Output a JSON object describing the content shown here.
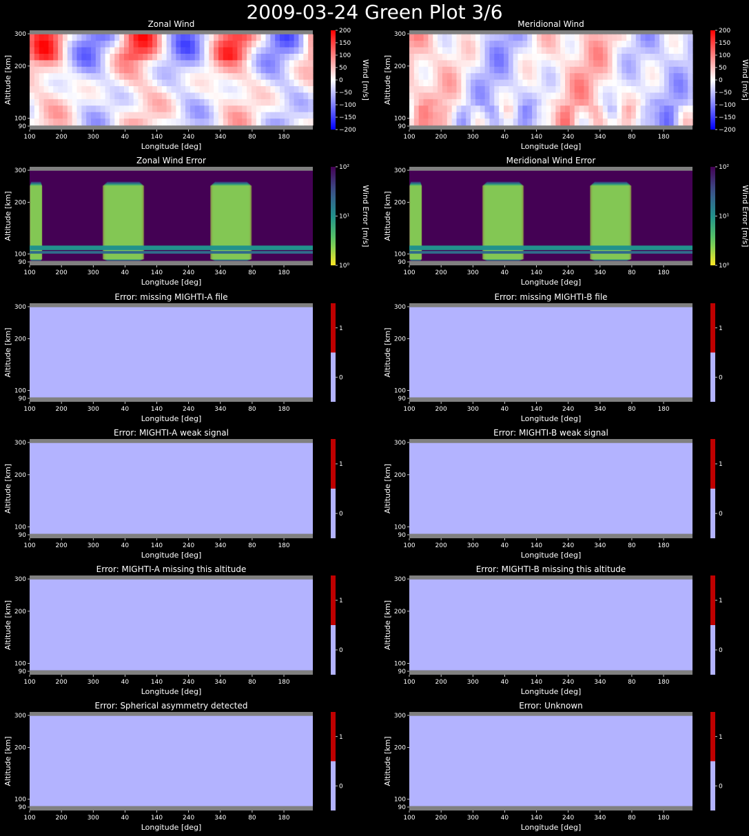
{
  "suptitle": "2009-03-24 Green Plot 3/6",
  "colors": {
    "background": "#000000",
    "text": "#ffffff",
    "nodata_gray": "#808080",
    "flag_zero": "#b3b3ff",
    "flag_one": "#bf0000"
  },
  "chart_data": [
    {
      "type": "heatmap",
      "title": "Zonal Wind",
      "xlabel": "Longitude [deg]",
      "ylabel": "Altitude [km]",
      "x_ticklabels": [
        "100",
        "200",
        "300",
        "40",
        "140",
        "240",
        "340",
        "80",
        "180"
      ],
      "y_ticklabels": [
        "90",
        "100",
        "200",
        "300"
      ],
      "colorbar": {
        "label": "Wind [m/s]",
        "cmap": "bwr",
        "scale": "linear",
        "range": [
          -200,
          200
        ],
        "ticks": [
          "200",
          "150",
          "100",
          "50",
          "0",
          "−50",
          "−100",
          "−150",
          "−200"
        ]
      }
    },
    {
      "type": "heatmap",
      "title": "Meridional Wind",
      "xlabel": "Longitude [deg]",
      "ylabel": "Altitude [km]",
      "x_ticklabels": [
        "100",
        "200",
        "300",
        "40",
        "140",
        "240",
        "340",
        "80",
        "180"
      ],
      "y_ticklabels": [
        "90",
        "100",
        "200",
        "300"
      ],
      "colorbar": {
        "label": "Wind [m/s]",
        "cmap": "bwr",
        "scale": "linear",
        "range": [
          -200,
          200
        ],
        "ticks": [
          "200",
          "150",
          "100",
          "50",
          "0",
          "−50",
          "−100",
          "−150",
          "−200"
        ]
      }
    },
    {
      "type": "heatmap",
      "title": "Zonal Wind Error",
      "xlabel": "Longitude [deg]",
      "ylabel": "Altitude [km]",
      "x_ticklabels": [
        "100",
        "200",
        "300",
        "40",
        "140",
        "240",
        "340",
        "80",
        "180"
      ],
      "y_ticklabels": [
        "90",
        "100",
        "200",
        "300"
      ],
      "colorbar": {
        "label": "Wind Error [m/s]",
        "cmap": "viridis_r",
        "scale": "log",
        "range": [
          1,
          100
        ],
        "ticks": [
          "10²",
          "10¹",
          "10⁰"
        ]
      }
    },
    {
      "type": "heatmap",
      "title": "Meridional Wind Error",
      "xlabel": "Longitude [deg]",
      "ylabel": "Altitude [km]",
      "x_ticklabels": [
        "100",
        "200",
        "300",
        "40",
        "140",
        "240",
        "340",
        "80",
        "180"
      ],
      "y_ticklabels": [
        "90",
        "100",
        "200",
        "300"
      ],
      "colorbar": {
        "label": "Wind Error [m/s]",
        "cmap": "viridis_r",
        "scale": "log",
        "range": [
          1,
          100
        ],
        "ticks": [
          "10²",
          "10¹",
          "10⁰"
        ]
      }
    },
    {
      "type": "heatmap",
      "title": "Error: missing MIGHTI-A file",
      "xlabel": "Longitude [deg]",
      "ylabel": "Altitude [km]",
      "x_ticklabels": [
        "100",
        "200",
        "300",
        "40",
        "140",
        "240",
        "340",
        "80",
        "180"
      ],
      "y_ticklabels": [
        "90",
        "100",
        "200",
        "300"
      ],
      "flag_value": 0,
      "colorbar": {
        "label": "",
        "cmap": "flag",
        "scale": "linear",
        "range": [
          0,
          1
        ],
        "ticks": [
          "1",
          "0"
        ]
      }
    },
    {
      "type": "heatmap",
      "title": "Error: missing MIGHTI-B file",
      "xlabel": "Longitude [deg]",
      "ylabel": "Altitude [km]",
      "x_ticklabels": [
        "100",
        "200",
        "300",
        "40",
        "140",
        "240",
        "340",
        "80",
        "180"
      ],
      "y_ticklabels": [
        "90",
        "100",
        "200",
        "300"
      ],
      "flag_value": 0,
      "colorbar": {
        "label": "",
        "cmap": "flag",
        "scale": "linear",
        "range": [
          0,
          1
        ],
        "ticks": [
          "1",
          "0"
        ]
      }
    },
    {
      "type": "heatmap",
      "title": "Error: MIGHTI-A weak signal",
      "xlabel": "Longitude [deg]",
      "ylabel": "Altitude [km]",
      "x_ticklabels": [
        "100",
        "200",
        "300",
        "40",
        "140",
        "240",
        "340",
        "80",
        "180"
      ],
      "y_ticklabels": [
        "90",
        "100",
        "200",
        "300"
      ],
      "flag_value": 0,
      "colorbar": {
        "label": "",
        "cmap": "flag",
        "scale": "linear",
        "range": [
          0,
          1
        ],
        "ticks": [
          "1",
          "0"
        ]
      }
    },
    {
      "type": "heatmap",
      "title": "Error: MIGHTI-B weak signal",
      "xlabel": "Longitude [deg]",
      "ylabel": "Altitude [km]",
      "x_ticklabels": [
        "100",
        "200",
        "300",
        "40",
        "140",
        "240",
        "340",
        "80",
        "180"
      ],
      "y_ticklabels": [
        "90",
        "100",
        "200",
        "300"
      ],
      "flag_value": 0,
      "colorbar": {
        "label": "",
        "cmap": "flag",
        "scale": "linear",
        "range": [
          0,
          1
        ],
        "ticks": [
          "1",
          "0"
        ]
      }
    },
    {
      "type": "heatmap",
      "title": "Error: MIGHTI-A missing this altitude",
      "xlabel": "Longitude [deg]",
      "ylabel": "Altitude [km]",
      "x_ticklabels": [
        "100",
        "200",
        "300",
        "40",
        "140",
        "240",
        "340",
        "80",
        "180"
      ],
      "y_ticklabels": [
        "90",
        "100",
        "200",
        "300"
      ],
      "flag_value": 0,
      "colorbar": {
        "label": "",
        "cmap": "flag",
        "scale": "linear",
        "range": [
          0,
          1
        ],
        "ticks": [
          "1",
          "0"
        ]
      }
    },
    {
      "type": "heatmap",
      "title": "Error: MIGHTI-B missing this altitude",
      "xlabel": "Longitude [deg]",
      "ylabel": "Altitude [km]",
      "x_ticklabels": [
        "100",
        "200",
        "300",
        "40",
        "140",
        "240",
        "340",
        "80",
        "180"
      ],
      "y_ticklabels": [
        "90",
        "100",
        "200",
        "300"
      ],
      "flag_value": 0,
      "colorbar": {
        "label": "",
        "cmap": "flag",
        "scale": "linear",
        "range": [
          0,
          1
        ],
        "ticks": [
          "1",
          "0"
        ]
      }
    },
    {
      "type": "heatmap",
      "title": "Error: Spherical asymmetry detected",
      "xlabel": "Longitude [deg]",
      "ylabel": "Altitude [km]",
      "x_ticklabels": [
        "100",
        "200",
        "300",
        "40",
        "140",
        "240",
        "340",
        "80",
        "180"
      ],
      "y_ticklabels": [
        "90",
        "100",
        "200",
        "300"
      ],
      "flag_value": 0,
      "colorbar": {
        "label": "",
        "cmap": "flag",
        "scale": "linear",
        "range": [
          0,
          1
        ],
        "ticks": [
          "1",
          "0"
        ]
      }
    },
    {
      "type": "heatmap",
      "title": "Error: Unknown",
      "xlabel": "Longitude [deg]",
      "ylabel": "Altitude [km]",
      "x_ticklabels": [
        "100",
        "200",
        "300",
        "40",
        "140",
        "240",
        "340",
        "80",
        "180"
      ],
      "y_ticklabels": [
        "90",
        "100",
        "200",
        "300"
      ],
      "flag_value": 0,
      "colorbar": {
        "label": "",
        "cmap": "flag",
        "scale": "linear",
        "range": [
          0,
          1
        ],
        "ticks": [
          "1",
          "0"
        ]
      }
    }
  ]
}
